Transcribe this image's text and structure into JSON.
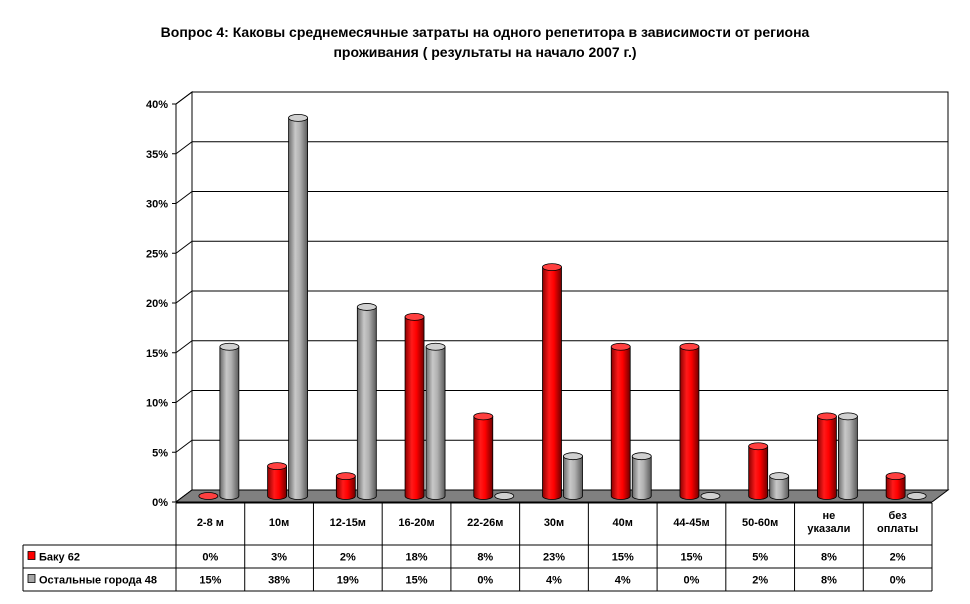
{
  "title_line1": "Вопрос 4: Каковы среднемесячные затраты на одного репетитора в зависимости от региона",
  "title_line2": "проживания  ( результаты на начало 2007 г.)",
  "colors": {
    "series1": "#ff0000",
    "series2": "#a6a6a6",
    "floor": "#808080"
  },
  "chart_data": {
    "type": "bar",
    "categories": [
      "2-8 м",
      "10м",
      "12-15м",
      "16-20м",
      "22-26м",
      "30м",
      "40м",
      "44-45м",
      "50-60м",
      "не указали",
      "без оплаты"
    ],
    "category_lines": [
      [
        "2-8 м"
      ],
      [
        "10м"
      ],
      [
        "12-15м"
      ],
      [
        "16-20м"
      ],
      [
        "22-26м"
      ],
      [
        "30м"
      ],
      [
        "40м"
      ],
      [
        "44-45м"
      ],
      [
        "50-60м"
      ],
      [
        "не",
        "указали"
      ],
      [
        "без",
        "оплаты"
      ]
    ],
    "series": [
      {
        "name": "Баку 62",
        "values": [
          0,
          3,
          2,
          18,
          8,
          23,
          15,
          15,
          5,
          8,
          2
        ],
        "labels": [
          "0%",
          "3%",
          "2%",
          "18%",
          "8%",
          "23%",
          "15%",
          "15%",
          "5%",
          "8%",
          "2%"
        ]
      },
      {
        "name": "Остальные города 48",
        "values": [
          15,
          38,
          19,
          15,
          0,
          4,
          4,
          0,
          2,
          8,
          0
        ],
        "labels": [
          "15%",
          "38%",
          "19%",
          "15%",
          "0%",
          "4%",
          "4%",
          "0%",
          "2%",
          "8%",
          "0%"
        ]
      }
    ],
    "ylim": [
      0,
      40
    ],
    "yticks": [
      "0%",
      "5%",
      "10%",
      "15%",
      "20%",
      "25%",
      "30%",
      "35%",
      "40%"
    ],
    "grid": true,
    "legend": "data-table"
  }
}
